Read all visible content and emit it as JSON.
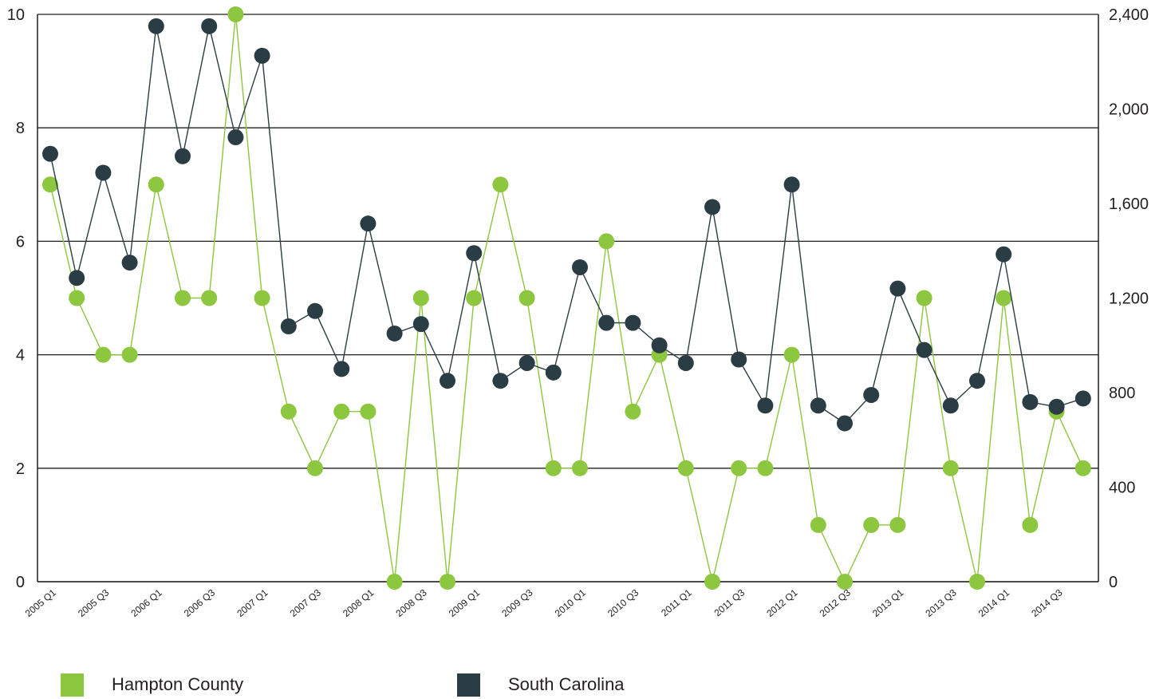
{
  "chart_data": {
    "type": "line",
    "title": "",
    "xlabel": "",
    "ylabel": "",
    "categories": [
      "2005 Q1",
      "2005 Q2",
      "2005 Q3",
      "2005 Q4",
      "2006 Q1",
      "2006 Q2",
      "2006 Q3",
      "2006 Q4",
      "2007 Q1",
      "2007 Q2",
      "2007 Q3",
      "2007 Q4",
      "2008 Q1",
      "2008 Q2",
      "2008 Q3",
      "2008 Q4",
      "2009 Q1",
      "2009 Q2",
      "2009 Q3",
      "2009 Q4",
      "2010 Q1",
      "2010 Q2",
      "2010 Q3",
      "2010 Q4",
      "2011 Q1",
      "2011 Q2",
      "2011 Q3",
      "2011 Q4",
      "2012 Q1",
      "2012 Q2",
      "2012 Q3",
      "2012 Q4",
      "2013 Q1",
      "2013 Q2",
      "2013 Q3",
      "2013 Q4",
      "2014 Q1",
      "2014 Q2",
      "2014 Q3",
      "2014 Q4"
    ],
    "x_tick_labels": [
      "2005 Q1",
      "2005 Q3",
      "2006 Q1",
      "2006 Q3",
      "2007 Q1",
      "2007 Q3",
      "2008 Q1",
      "2008 Q3",
      "2009 Q1",
      "2009 Q3",
      "2010 Q1",
      "2010 Q3",
      "2011 Q1",
      "2011 Q3",
      "2012 Q1",
      "2012 Q3",
      "2013 Q1",
      "2013 Q3",
      "2014 Q1",
      "2014 Q3"
    ],
    "y_left": {
      "lim": [
        0,
        10
      ],
      "ticks": [
        "0",
        "2",
        "4",
        "6",
        "8",
        "10"
      ]
    },
    "y_right": {
      "lim": [
        0,
        2400
      ],
      "ticks": [
        "0",
        "400",
        "800",
        "1,200",
        "1,600",
        "2,000",
        "2,400"
      ]
    },
    "grid": "horizontal",
    "legend_position": "bottom",
    "series": [
      {
        "name": "Hampton County",
        "axis": "left",
        "color": "#8dc63f",
        "values": [
          7,
          5,
          4,
          4,
          7,
          5,
          5,
          10,
          5,
          3,
          2,
          3,
          3,
          0,
          5,
          0,
          5,
          7,
          5,
          2,
          2,
          6,
          3,
          4,
          2,
          0,
          2,
          2,
          4,
          1,
          0,
          1,
          1,
          5,
          2,
          0,
          5,
          1,
          3,
          2
        ]
      },
      {
        "name": "South Carolina",
        "axis": "right",
        "color": "#2b3d44",
        "values": [
          1810,
          1285,
          1730,
          1350,
          2350,
          1800,
          2350,
          1880,
          2225,
          1080,
          1145,
          900,
          1515,
          1050,
          1090,
          850,
          1390,
          850,
          925,
          885,
          1330,
          1095,
          1095,
          1000,
          925,
          1585,
          940,
          745,
          1680,
          745,
          670,
          790,
          1240,
          980,
          745,
          850,
          1385,
          760,
          740,
          775
        ]
      }
    ]
  },
  "legend": {
    "items": [
      {
        "label": "Hampton County",
        "color": "#8dc63f"
      },
      {
        "label": "South Carolina",
        "color": "#2b3d44"
      }
    ]
  }
}
